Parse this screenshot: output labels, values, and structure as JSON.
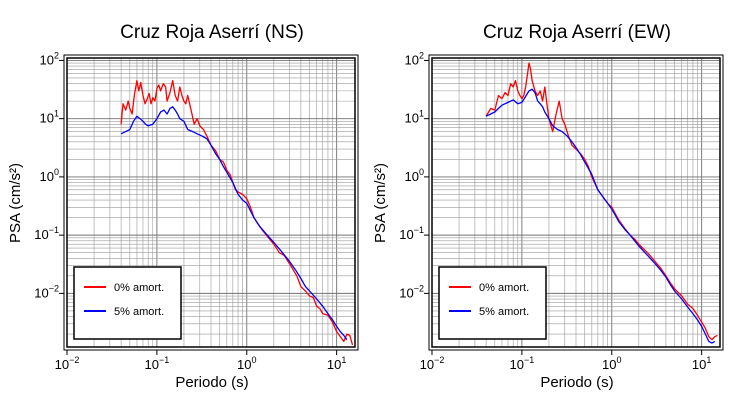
{
  "chart_data": [
    {
      "type": "line",
      "title": "Cruz Roja Aserrí (NS)",
      "xlabel": "Periodo (s)",
      "ylabel": "PSA (cm/s²)",
      "xscale": "log",
      "yscale": "log",
      "xlim": [
        0.01,
        16
      ],
      "ylim": [
        0.0012,
        110
      ],
      "grid": true,
      "legend": "bottom-left",
      "x_ticks": [
        "10^-2",
        "10^-1",
        "10^0",
        "10^1"
      ],
      "y_ticks": [
        "10^-2",
        "10^-1",
        "10^0",
        "10^1",
        "10^2"
      ],
      "series": [
        {
          "name": "0% amort.",
          "color": "#ff0000",
          "points": [
            [
              0.04,
              8.0
            ],
            [
              0.042,
              18.0
            ],
            [
              0.045,
              14.0
            ],
            [
              0.048,
              20.0
            ],
            [
              0.05,
              15.0
            ],
            [
              0.053,
              12.0
            ],
            [
              0.056,
              25.0
            ],
            [
              0.06,
              45.0
            ],
            [
              0.063,
              30.0
            ],
            [
              0.066,
              42.0
            ],
            [
              0.07,
              25.0
            ],
            [
              0.074,
              18.0
            ],
            [
              0.078,
              22.0
            ],
            [
              0.082,
              27.0
            ],
            [
              0.086,
              18.0
            ],
            [
              0.09,
              23.0
            ],
            [
              0.095,
              20.0
            ],
            [
              0.1,
              33.0
            ],
            [
              0.105,
              38.0
            ],
            [
              0.11,
              30.0
            ],
            [
              0.118,
              40.0
            ],
            [
              0.125,
              35.0
            ],
            [
              0.13,
              20.0
            ],
            [
              0.14,
              28.0
            ],
            [
              0.15,
              45.0
            ],
            [
              0.16,
              25.0
            ],
            [
              0.17,
              20.0
            ],
            [
              0.18,
              35.0
            ],
            [
              0.19,
              25.0
            ],
            [
              0.2,
              20.0
            ],
            [
              0.21,
              18.0
            ],
            [
              0.22,
              25.0
            ],
            [
              0.24,
              14.0
            ],
            [
              0.26,
              8.0
            ],
            [
              0.28,
              10.0
            ],
            [
              0.3,
              7.5
            ],
            [
              0.33,
              6.5
            ],
            [
              0.36,
              5.0
            ],
            [
              0.4,
              3.5
            ],
            [
              0.45,
              2.8
            ],
            [
              0.5,
              2.0
            ],
            [
              0.55,
              1.8
            ],
            [
              0.6,
              1.3
            ],
            [
              0.65,
              1.1
            ],
            [
              0.7,
              0.8
            ],
            [
              0.75,
              0.6
            ],
            [
              0.8,
              0.55
            ],
            [
              0.9,
              0.5
            ],
            [
              1.0,
              0.42
            ],
            [
              1.1,
              0.3
            ],
            [
              1.2,
              0.2
            ],
            [
              1.35,
              0.15
            ],
            [
              1.5,
              0.12
            ],
            [
              1.7,
              0.095
            ],
            [
              2.0,
              0.07
            ],
            [
              2.3,
              0.05
            ],
            [
              2.6,
              0.045
            ],
            [
              3.0,
              0.032
            ],
            [
              3.3,
              0.025
            ],
            [
              3.6,
              0.02
            ],
            [
              4.0,
              0.013
            ],
            [
              4.5,
              0.011
            ],
            [
              5.0,
              0.009
            ],
            [
              5.5,
              0.0085
            ],
            [
              6.0,
              0.006
            ],
            [
              6.5,
              0.0055
            ],
            [
              7.0,
              0.0045
            ],
            [
              8.0,
              0.0042
            ],
            [
              9.0,
              0.0032
            ],
            [
              10.0,
              0.0022
            ],
            [
              11.0,
              0.0018
            ],
            [
              12.0,
              0.0015
            ],
            [
              13.0,
              0.002
            ],
            [
              14.0,
              0.0019
            ],
            [
              15.0,
              0.0013
            ]
          ]
        },
        {
          "name": "5% amort.",
          "color": "#0000ff",
          "points": [
            [
              0.04,
              5.5
            ],
            [
              0.045,
              6.0
            ],
            [
              0.05,
              6.5
            ],
            [
              0.055,
              9.0
            ],
            [
              0.06,
              11.0
            ],
            [
              0.065,
              10.0
            ],
            [
              0.07,
              9.0
            ],
            [
              0.075,
              8.0
            ],
            [
              0.08,
              7.5
            ],
            [
              0.09,
              8.0
            ],
            [
              0.1,
              10.0
            ],
            [
              0.11,
              13.0
            ],
            [
              0.12,
              14.0
            ],
            [
              0.13,
              12.0
            ],
            [
              0.14,
              15.0
            ],
            [
              0.15,
              16.0
            ],
            [
              0.16,
              14.0
            ],
            [
              0.17,
              12.0
            ],
            [
              0.18,
              10.0
            ],
            [
              0.2,
              9.0
            ],
            [
              0.22,
              6.5
            ],
            [
              0.25,
              6.0
            ],
            [
              0.28,
              5.5
            ],
            [
              0.32,
              5.0
            ],
            [
              0.36,
              4.5
            ],
            [
              0.4,
              3.5
            ],
            [
              0.45,
              2.5
            ],
            [
              0.5,
              2.0
            ],
            [
              0.55,
              1.5
            ],
            [
              0.6,
              1.2
            ],
            [
              0.7,
              0.8
            ],
            [
              0.8,
              0.5
            ],
            [
              0.9,
              0.4
            ],
            [
              1.0,
              0.35
            ],
            [
              1.2,
              0.2
            ],
            [
              1.4,
              0.14
            ],
            [
              1.6,
              0.11
            ],
            [
              1.8,
              0.09
            ],
            [
              2.0,
              0.075
            ],
            [
              2.5,
              0.05
            ],
            [
              3.0,
              0.035
            ],
            [
              3.5,
              0.025
            ],
            [
              4.0,
              0.018
            ],
            [
              4.5,
              0.013
            ],
            [
              5.0,
              0.011
            ],
            [
              6.0,
              0.008
            ],
            [
              7.0,
              0.006
            ],
            [
              8.0,
              0.0045
            ],
            [
              9.0,
              0.0035
            ],
            [
              10.0,
              0.0027
            ],
            [
              11.0,
              0.0022
            ],
            [
              12.0,
              0.0019
            ],
            [
              13.0,
              0.0016
            ]
          ]
        }
      ]
    },
    {
      "type": "line",
      "title": "Cruz Roja Aserrí (EW)",
      "xlabel": "Periodo (s)",
      "ylabel": "PSA (cm/s²)",
      "xscale": "log",
      "yscale": "log",
      "xlim": [
        0.01,
        16
      ],
      "ylim": [
        0.0012,
        110
      ],
      "grid": true,
      "legend": "bottom-left",
      "x_ticks": [
        "10^-2",
        "10^-1",
        "10^0",
        "10^1"
      ],
      "y_ticks": [
        "10^-2",
        "10^-1",
        "10^0",
        "10^1",
        "10^2"
      ],
      "series": [
        {
          "name": "0% amort.",
          "color": "#ff0000",
          "points": [
            [
              0.04,
              11.0
            ],
            [
              0.045,
              15.0
            ],
            [
              0.05,
              14.0
            ],
            [
              0.055,
              25.0
            ],
            [
              0.06,
              22.0
            ],
            [
              0.065,
              28.0
            ],
            [
              0.07,
              25.0
            ],
            [
              0.075,
              40.0
            ],
            [
              0.08,
              35.0
            ],
            [
              0.085,
              45.0
            ],
            [
              0.09,
              30.0
            ],
            [
              0.095,
              25.0
            ],
            [
              0.1,
              22.0
            ],
            [
              0.105,
              25.0
            ],
            [
              0.11,
              35.0
            ],
            [
              0.115,
              55.0
            ],
            [
              0.12,
              90.0
            ],
            [
              0.125,
              70.0
            ],
            [
              0.13,
              45.0
            ],
            [
              0.14,
              30.0
            ],
            [
              0.15,
              25.0
            ],
            [
              0.16,
              30.0
            ],
            [
              0.17,
              20.0
            ],
            [
              0.18,
              35.0
            ],
            [
              0.19,
              18.0
            ],
            [
              0.2,
              10.0
            ],
            [
              0.22,
              6.0
            ],
            [
              0.24,
              12.0
            ],
            [
              0.26,
              20.0
            ],
            [
              0.28,
              10.0
            ],
            [
              0.3,
              8.0
            ],
            [
              0.33,
              5.0
            ],
            [
              0.36,
              3.5
            ],
            [
              0.4,
              3.0
            ],
            [
              0.45,
              2.5
            ],
            [
              0.5,
              2.0
            ],
            [
              0.55,
              1.5
            ],
            [
              0.6,
              1.0
            ],
            [
              0.7,
              0.6
            ],
            [
              0.8,
              0.45
            ],
            [
              0.9,
              0.35
            ],
            [
              1.0,
              0.3
            ],
            [
              1.2,
              0.18
            ],
            [
              1.4,
              0.13
            ],
            [
              1.6,
              0.1
            ],
            [
              1.8,
              0.085
            ],
            [
              2.0,
              0.07
            ],
            [
              2.5,
              0.05
            ],
            [
              3.0,
              0.036
            ],
            [
              3.5,
              0.027
            ],
            [
              4.0,
              0.02
            ],
            [
              4.5,
              0.015
            ],
            [
              5.0,
              0.012
            ],
            [
              6.0,
              0.009
            ],
            [
              7.0,
              0.0065
            ],
            [
              8.0,
              0.0055
            ],
            [
              9.0,
              0.0042
            ],
            [
              10.0,
              0.0032
            ],
            [
              11.0,
              0.0025
            ],
            [
              12.0,
              0.0018
            ],
            [
              13.0,
              0.0016
            ],
            [
              14.0,
              0.0018
            ],
            [
              15.0,
              0.0019
            ]
          ]
        },
        {
          "name": "5% amort.",
          "color": "#0000ff",
          "points": [
            [
              0.04,
              11.0
            ],
            [
              0.045,
              12.0
            ],
            [
              0.05,
              13.0
            ],
            [
              0.055,
              15.0
            ],
            [
              0.06,
              17.0
            ],
            [
              0.07,
              19.0
            ],
            [
              0.08,
              21.0
            ],
            [
              0.09,
              18.0
            ],
            [
              0.1,
              19.0
            ],
            [
              0.11,
              24.0
            ],
            [
              0.12,
              30.0
            ],
            [
              0.13,
              32.0
            ],
            [
              0.14,
              28.0
            ],
            [
              0.15,
              20.0
            ],
            [
              0.16,
              18.0
            ],
            [
              0.17,
              16.0
            ],
            [
              0.18,
              13.0
            ],
            [
              0.2,
              10.0
            ],
            [
              0.22,
              7.5
            ],
            [
              0.25,
              6.5
            ],
            [
              0.28,
              6.0
            ],
            [
              0.32,
              5.0
            ],
            [
              0.36,
              4.0
            ],
            [
              0.4,
              3.2
            ],
            [
              0.45,
              2.4
            ],
            [
              0.5,
              1.8
            ],
            [
              0.55,
              1.4
            ],
            [
              0.6,
              1.1
            ],
            [
              0.7,
              0.6
            ],
            [
              0.8,
              0.45
            ],
            [
              0.9,
              0.35
            ],
            [
              1.0,
              0.28
            ],
            [
              1.2,
              0.17
            ],
            [
              1.4,
              0.125
            ],
            [
              1.6,
              0.1
            ],
            [
              1.8,
              0.08
            ],
            [
              2.0,
              0.065
            ],
            [
              2.5,
              0.045
            ],
            [
              3.0,
              0.033
            ],
            [
              3.5,
              0.025
            ],
            [
              4.0,
              0.019
            ],
            [
              4.5,
              0.014
            ],
            [
              5.0,
              0.011
            ],
            [
              6.0,
              0.008
            ],
            [
              7.0,
              0.0058
            ],
            [
              8.0,
              0.0045
            ],
            [
              9.0,
              0.0035
            ],
            [
              10.0,
              0.0027
            ],
            [
              11.0,
              0.002
            ],
            [
              12.0,
              0.0015
            ],
            [
              13.0,
              0.0014
            ],
            [
              14.0,
              0.0015
            ]
          ]
        }
      ]
    }
  ]
}
